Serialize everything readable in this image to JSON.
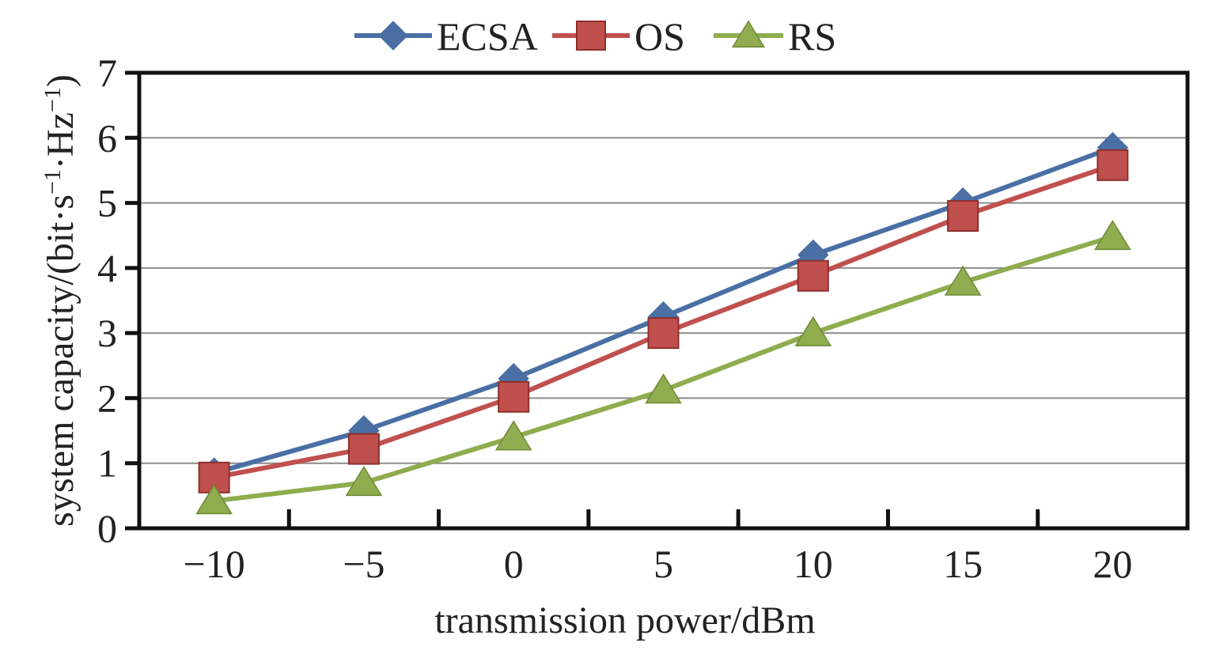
{
  "chart_data": {
    "type": "line",
    "x": [
      -10,
      -5,
      0,
      5,
      10,
      15,
      20
    ],
    "x_tick_labels": [
      "−10",
      "−5",
      "0",
      "5",
      "10",
      "15",
      "20"
    ],
    "y_ticks": [
      0,
      1,
      2,
      3,
      4,
      5,
      6,
      7
    ],
    "y_tick_labels": [
      "0",
      "1",
      "2",
      "3",
      "4",
      "5",
      "6",
      "7"
    ],
    "ylim": [
      0,
      7
    ],
    "xlabel": "transmission power/dBm",
    "ylabel_parts": {
      "main": "system capacity/(bit·s",
      "sup1": "−1",
      "mid": "·Hz",
      "sup2": "−1",
      "end": ")"
    },
    "grid": "horizontal",
    "legend_position": "top",
    "series": [
      {
        "name": "ECSA",
        "color": "#4a6fa5",
        "marker": "diamond",
        "values": [
          0.85,
          1.5,
          2.3,
          3.25,
          4.2,
          5.0,
          5.85
        ]
      },
      {
        "name": "OS",
        "color": "#c0504d",
        "marker": "square",
        "values": [
          0.78,
          1.22,
          2.02,
          3.0,
          3.88,
          4.8,
          5.58
        ]
      },
      {
        "name": "RS",
        "color": "#8fac4e",
        "marker": "triangle",
        "values": [
          0.42,
          0.7,
          1.4,
          2.12,
          3.0,
          3.78,
          4.48
        ]
      }
    ]
  }
}
